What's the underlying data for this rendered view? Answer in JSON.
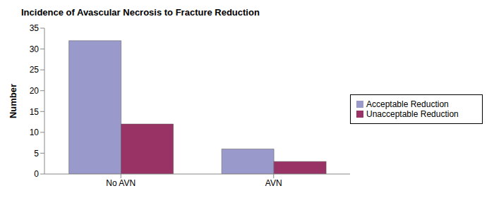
{
  "chart_data": {
    "type": "bar",
    "title": "Incidence of Avascular Necrosis to Fracture Reduction",
    "y_label": "Number",
    "categories": [
      "No AVN",
      "AVN"
    ],
    "series": [
      {
        "name": "Acceptable Reduction",
        "color": "#9999cc",
        "values": [
          32,
          6
        ]
      },
      {
        "name": "Unacceptable Reduction",
        "color": "#993366",
        "values": [
          12,
          3
        ]
      }
    ],
    "ylim": [
      0,
      35
    ],
    "yticks": [
      0,
      5,
      10,
      15,
      20,
      25,
      30,
      35
    ],
    "grid": false,
    "legend": "right"
  }
}
